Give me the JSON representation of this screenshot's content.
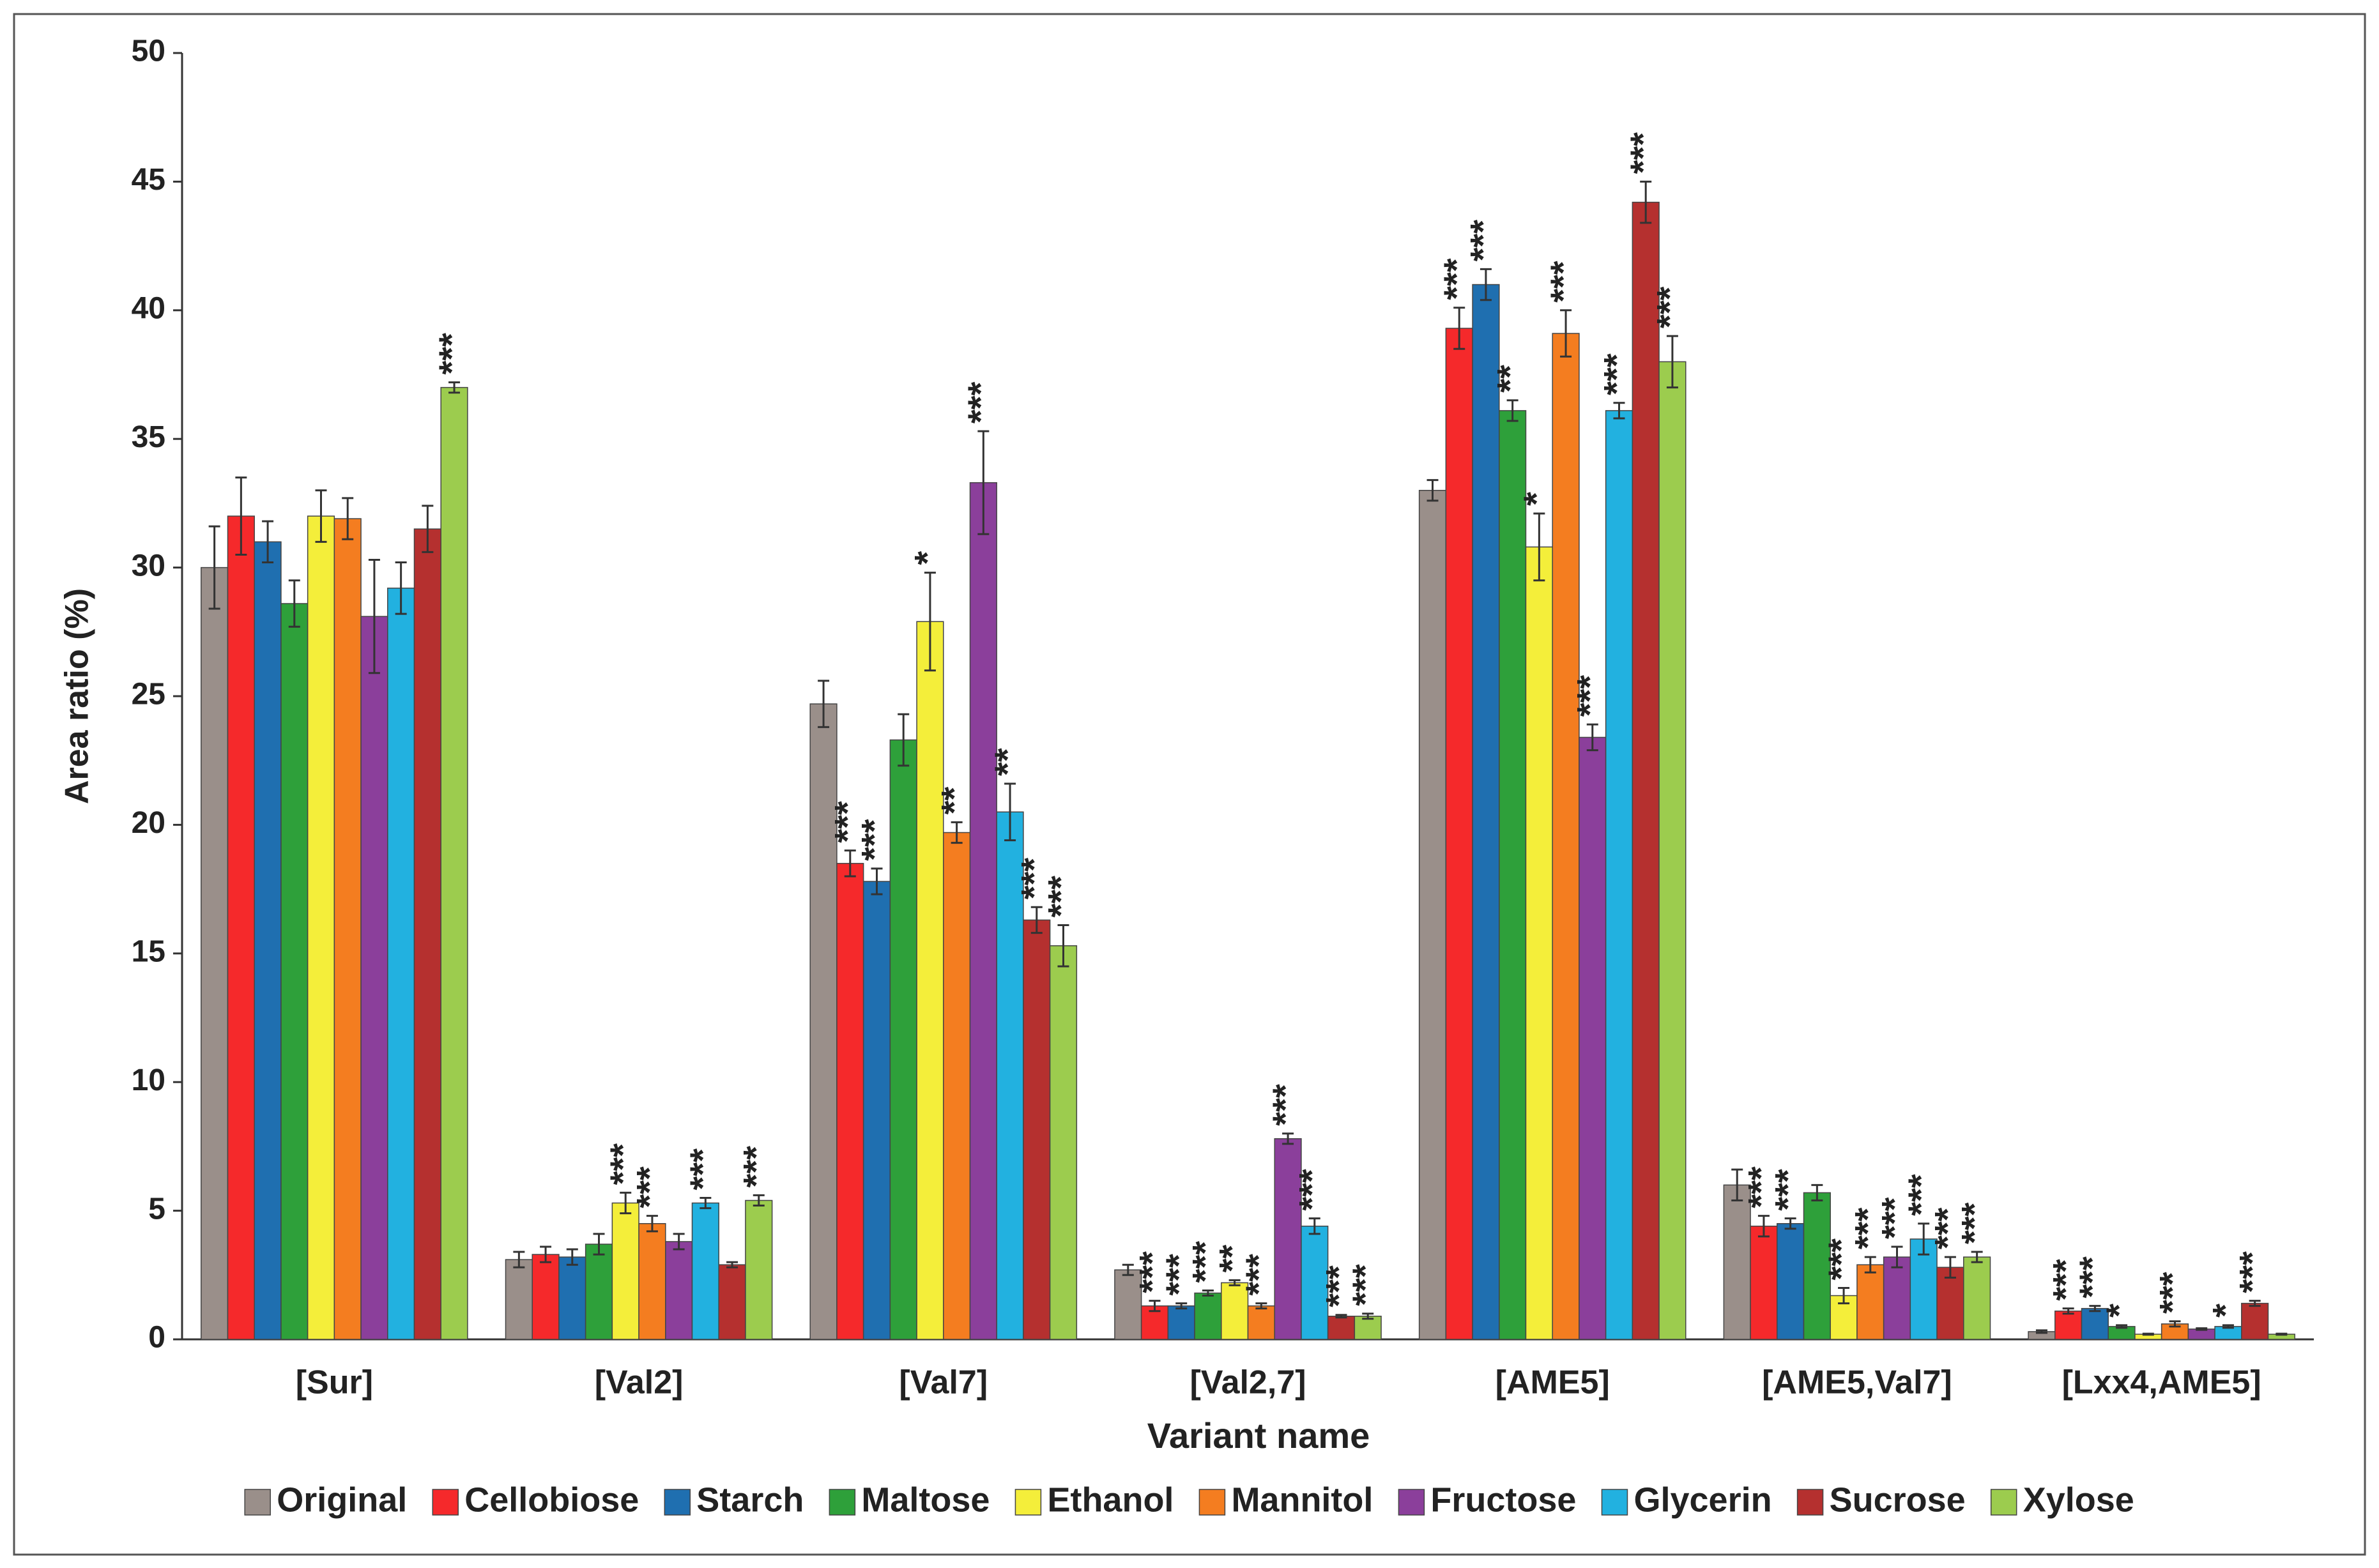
{
  "chart_data": {
    "type": "bar",
    "x_label": "Variant name",
    "y_label": "Area ratio (%)",
    "categories": [
      "[Sur]",
      "[Val2]",
      "[Val7]",
      "[Val2,7]",
      "[AME5]",
      "[AME5,Val7]",
      "[Lxx4,AME5]"
    ],
    "ylim": [
      0,
      50
    ],
    "yticks": [
      0,
      5,
      10,
      15,
      20,
      25,
      30,
      35,
      40,
      45,
      50
    ],
    "legend": "bottom",
    "series": [
      {
        "name": "Original",
        "color": "#9a8f8a",
        "values": [
          30,
          3.1,
          24.7,
          2.7,
          33,
          6.0,
          0.3
        ],
        "errors": [
          1.6,
          0.3,
          0.9,
          0.2,
          0.4,
          0.6,
          0.05
        ],
        "annotations": [
          null,
          null,
          null,
          null,
          null,
          null,
          null
        ]
      },
      {
        "name": "Cellobiose",
        "color": "#f5292b",
        "values": [
          32,
          3.3,
          18.5,
          1.3,
          39.3,
          4.4,
          1.1
        ],
        "errors": [
          1.5,
          0.3,
          0.5,
          0.2,
          0.8,
          0.4,
          0.1
        ],
        "annotations": [
          null,
          null,
          "***",
          "***",
          "***",
          "***",
          "***"
        ]
      },
      {
        "name": "Starch",
        "color": "#1f6fb0",
        "values": [
          31,
          3.2,
          17.8,
          1.3,
          41,
          4.5,
          1.2
        ],
        "errors": [
          0.8,
          0.3,
          0.5,
          0.1,
          0.6,
          0.2,
          0.1
        ],
        "annotations": [
          null,
          null,
          "***",
          "***",
          "***",
          "***",
          "***"
        ]
      },
      {
        "name": "Maltose",
        "color": "#2ea03a",
        "values": [
          28.6,
          3.7,
          23.3,
          1.8,
          36.1,
          5.7,
          0.5
        ],
        "errors": [
          0.9,
          0.4,
          1.0,
          0.1,
          0.4,
          0.3,
          0.05
        ],
        "annotations": [
          null,
          null,
          null,
          "***",
          "**",
          null,
          "*"
        ]
      },
      {
        "name": "Ethanol",
        "color": "#f4ee3a",
        "values": [
          32,
          5.3,
          27.9,
          2.2,
          30.8,
          1.7,
          0.2
        ],
        "errors": [
          1.0,
          0.4,
          1.9,
          0.1,
          1.3,
          0.3,
          0.02
        ],
        "annotations": [
          null,
          "***",
          "*",
          "**",
          "*",
          "***",
          null
        ]
      },
      {
        "name": "Mannitol",
        "color": "#f47d20",
        "values": [
          31.9,
          4.5,
          19.7,
          1.3,
          39.1,
          2.9,
          0.6
        ],
        "errors": [
          0.8,
          0.3,
          0.4,
          0.1,
          0.9,
          0.3,
          0.1
        ],
        "annotations": [
          null,
          "***",
          "**",
          "***",
          "***",
          "***",
          "***"
        ]
      },
      {
        "name": "Fructose",
        "color": "#8b3f9b",
        "values": [
          28.1,
          3.8,
          33.3,
          7.8,
          23.4,
          3.2,
          0.4
        ],
        "errors": [
          2.2,
          0.3,
          2.0,
          0.2,
          0.5,
          0.4,
          0.03
        ],
        "annotations": [
          null,
          null,
          "***",
          "***",
          "***",
          "***",
          null
        ]
      },
      {
        "name": "Glycerin",
        "color": "#22b1e0",
        "values": [
          29.2,
          5.3,
          20.5,
          4.4,
          36.1,
          3.9,
          0.5
        ],
        "errors": [
          1.0,
          0.2,
          1.1,
          0.3,
          0.3,
          0.6,
          0.05
        ],
        "annotations": [
          null,
          "***",
          "**",
          "***",
          "***",
          "***",
          "*"
        ]
      },
      {
        "name": "Sucrose",
        "color": "#b5302f",
        "values": [
          31.5,
          2.9,
          16.3,
          0.9,
          44.2,
          2.8,
          1.4
        ],
        "errors": [
          0.9,
          0.1,
          0.5,
          0.05,
          0.8,
          0.4,
          0.1
        ],
        "annotations": [
          null,
          null,
          "***",
          "***",
          "***",
          "***",
          "***"
        ]
      },
      {
        "name": "Xylose",
        "color": "#9ccc4e",
        "values": [
          37,
          5.4,
          15.3,
          0.9,
          38,
          3.2,
          0.2
        ],
        "errors": [
          0.2,
          0.2,
          0.8,
          0.1,
          1.0,
          0.2,
          0.02
        ],
        "annotations": [
          "***",
          "***",
          "***",
          "***",
          "***",
          "***",
          null
        ]
      }
    ]
  }
}
